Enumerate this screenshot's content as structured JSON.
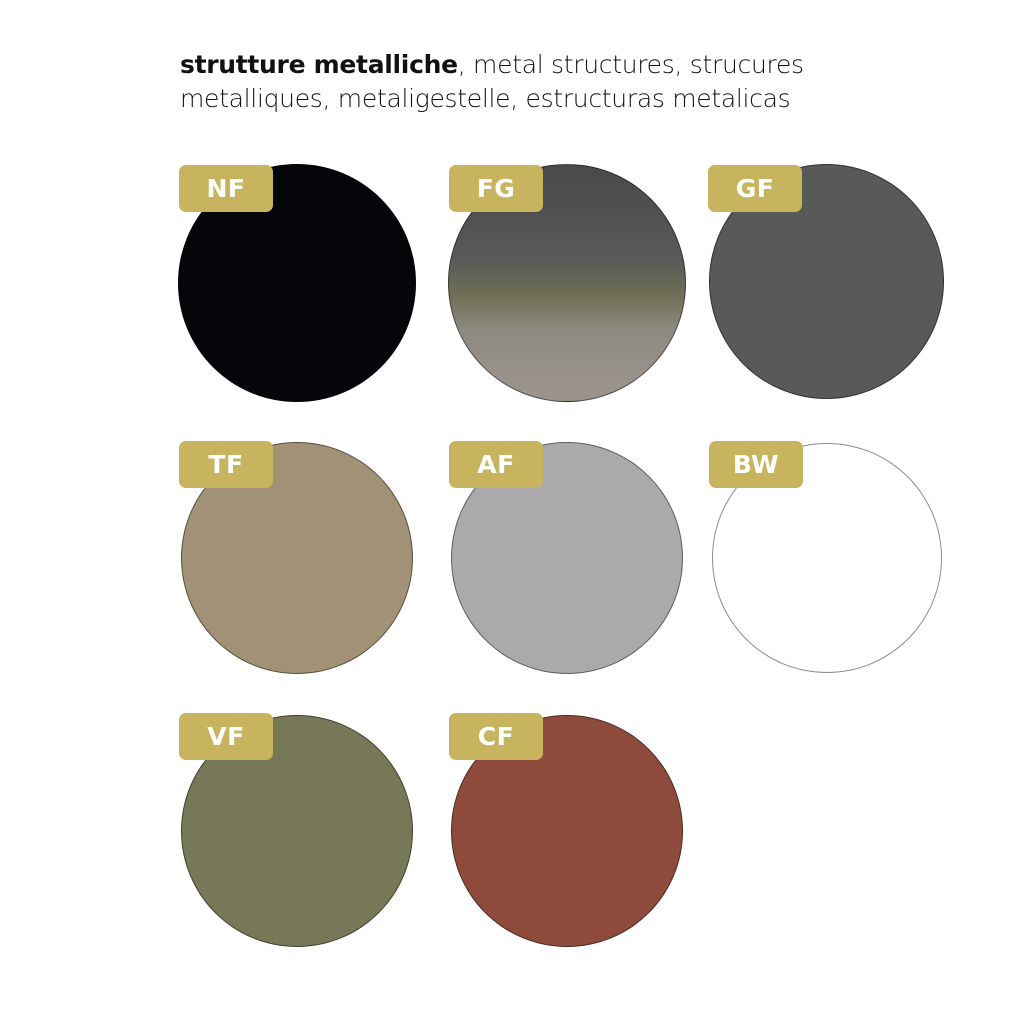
{
  "title": {
    "bold": "strutture metalliche",
    "rest": ", metal structures, strucures metalliques, metaligestelle, estructuras metalicas"
  },
  "badge_color": "#c8b45f",
  "swatches": [
    {
      "code": "NF",
      "color": "#05060a"
    },
    {
      "code": "FG",
      "color": "linear-gradient(180deg,#4b4849 0%,#585a58 40%,#6e6f55 55%,#8e8a82 70%,#9b958e 100%)"
    },
    {
      "code": "GF",
      "color": "#585a58"
    },
    {
      "code": "TF",
      "color": "#a19177"
    },
    {
      "code": "AF",
      "color": "#aaaaaa"
    },
    {
      "code": "BW",
      "color": "#ffffff"
    },
    {
      "code": "VF",
      "color": "#777858"
    },
    {
      "code": "CF",
      "color": "#8e4b3c"
    }
  ]
}
